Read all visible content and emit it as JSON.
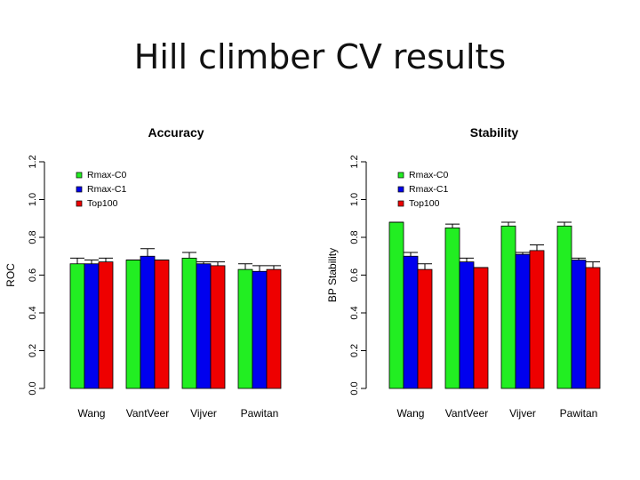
{
  "slide": {
    "title": "Hill climber CV results"
  },
  "colors": {
    "Rmax-C0": "#22ee22",
    "Rmax-C1": "#0000ee",
    "Top100": "#ee0000"
  },
  "chart_data": [
    {
      "type": "bar",
      "title": "Accuracy",
      "xlabel": "",
      "ylabel": "ROC",
      "ylim": [
        0,
        1.2
      ],
      "yticks": [
        "0.0",
        "0.2",
        "0.4",
        "0.6",
        "0.8",
        "1.0",
        "1.2"
      ],
      "categories": [
        "Wang",
        "VantVeer",
        "Vijver",
        "Pawitan"
      ],
      "series": [
        {
          "name": "Rmax-C0",
          "values": [
            0.66,
            0.68,
            0.69,
            0.63
          ],
          "error_upper": [
            0.69,
            0.68,
            0.72,
            0.66
          ]
        },
        {
          "name": "Rmax-C1",
          "values": [
            0.66,
            0.7,
            0.66,
            0.62
          ],
          "error_upper": [
            0.68,
            0.74,
            0.67,
            0.65
          ]
        },
        {
          "name": "Top100",
          "values": [
            0.67,
            0.68,
            0.65,
            0.63
          ],
          "error_upper": [
            0.69,
            0.68,
            0.67,
            0.65
          ]
        }
      ],
      "legend": "top-left"
    },
    {
      "type": "bar",
      "title": "Stability",
      "xlabel": "",
      "ylabel": "BP Stability",
      "ylim": [
        0,
        1.2
      ],
      "yticks": [
        "0.0",
        "0.2",
        "0.4",
        "0.6",
        "0.8",
        "1.0",
        "1.2"
      ],
      "categories": [
        "Wang",
        "VantVeer",
        "Vijver",
        "Pawitan"
      ],
      "series": [
        {
          "name": "Rmax-C0",
          "values": [
            0.88,
            0.85,
            0.86,
            0.86
          ],
          "error_upper": [
            0.88,
            0.87,
            0.88,
            0.88
          ]
        },
        {
          "name": "Rmax-C1",
          "values": [
            0.7,
            0.67,
            0.71,
            0.68
          ],
          "error_upper": [
            0.72,
            0.69,
            0.72,
            0.69
          ]
        },
        {
          "name": "Top100",
          "values": [
            0.63,
            0.64,
            0.73,
            0.64
          ],
          "error_upper": [
            0.66,
            0.64,
            0.76,
            0.67
          ]
        }
      ],
      "legend": "top-left"
    }
  ]
}
